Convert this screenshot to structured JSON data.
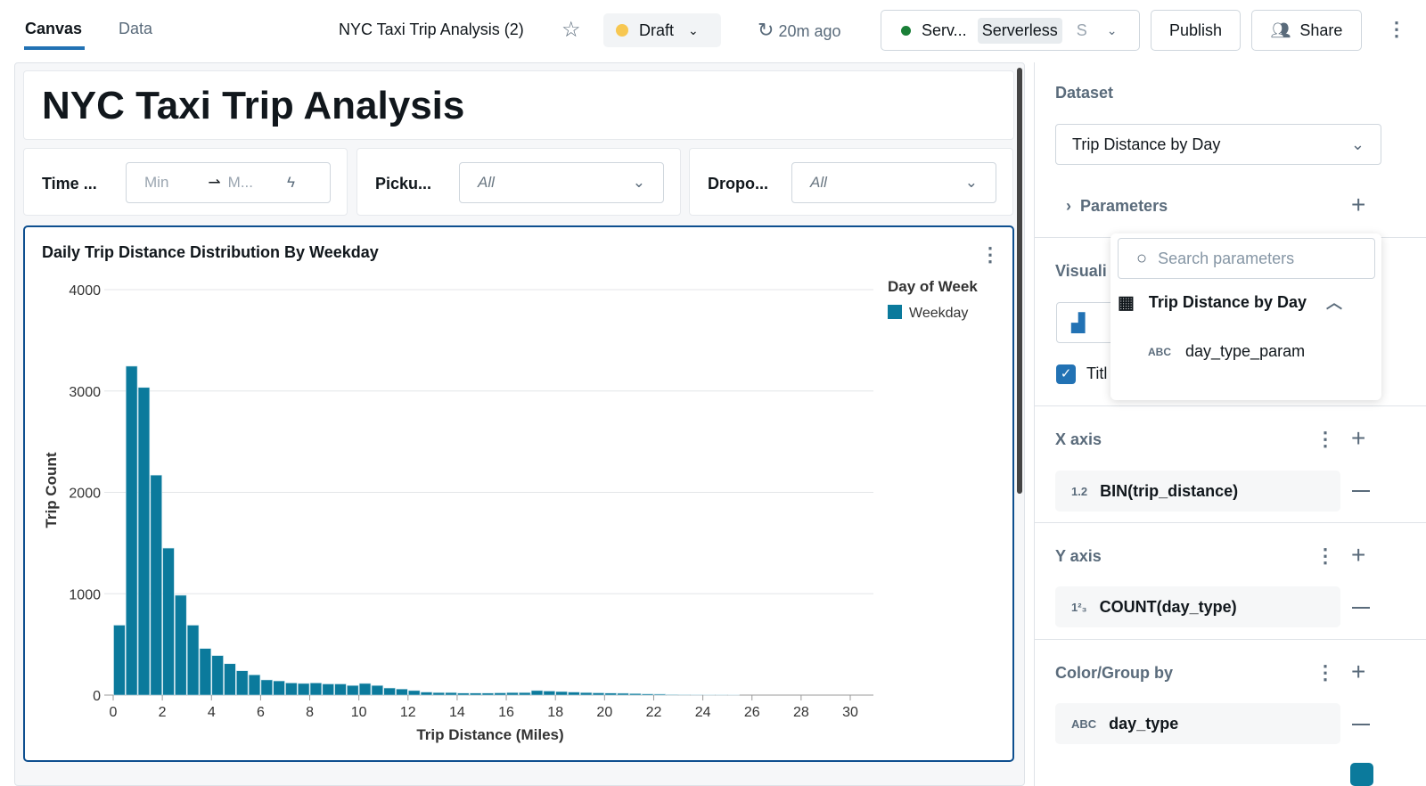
{
  "header": {
    "tabs": [
      {
        "label": "Canvas",
        "active": true
      },
      {
        "label": "Data",
        "active": false
      }
    ],
    "title": "NYC Taxi Trip Analysis (2)",
    "status": "Draft",
    "refresh": "20m ago",
    "compute": {
      "name": "Serv...",
      "badge": "Serverless",
      "size": "S"
    },
    "publish": "Publish",
    "share": "Share"
  },
  "dashboard": {
    "title": "NYC Taxi Trip Analysis",
    "filters": [
      {
        "label": "Time ...",
        "min": "Min",
        "max": "M..."
      },
      {
        "label": "Picku...",
        "value": "All"
      },
      {
        "label": "Dropo...",
        "value": "All"
      }
    ]
  },
  "chart_data": {
    "type": "bar",
    "title": "Daily Trip Distance Distribution By Weekday",
    "xlabel": "Trip Distance (Miles)",
    "ylabel": "Trip Count",
    "xlim": [
      0,
      30
    ],
    "ylim": [
      0,
      4000
    ],
    "xticks": [
      0,
      2,
      4,
      6,
      8,
      10,
      12,
      14,
      16,
      18,
      20,
      22,
      24,
      26,
      28,
      30
    ],
    "yticks": [
      0,
      1000,
      2000,
      3000,
      4000
    ],
    "grid": true,
    "bin_width": 0.5,
    "legend": {
      "title": "Day of Week",
      "position": "top-right"
    },
    "color": "#0b7a9c",
    "series": [
      {
        "name": "Weekday",
        "bin_start": [
          0,
          0.5,
          1,
          1.5,
          2,
          2.5,
          3,
          3.5,
          4,
          4.5,
          5,
          5.5,
          6,
          6.5,
          7,
          7.5,
          8,
          8.5,
          9,
          9.5,
          10,
          10.5,
          11,
          11.5,
          12,
          12.5,
          13,
          13.5,
          14,
          14.5,
          15,
          15.5,
          16,
          16.5,
          17,
          17.5,
          18,
          18.5,
          19,
          19.5,
          20,
          20.5,
          21,
          21.5,
          22,
          22.5,
          23,
          23.5,
          24,
          24.5,
          25
        ],
        "values": [
          690,
          3245,
          3035,
          2170,
          1450,
          985,
          690,
          460,
          390,
          310,
          240,
          200,
          150,
          140,
          120,
          115,
          120,
          110,
          110,
          95,
          115,
          95,
          70,
          60,
          45,
          30,
          25,
          25,
          20,
          20,
          20,
          22,
          25,
          25,
          45,
          40,
          35,
          30,
          25,
          22,
          20,
          18,
          15,
          12,
          10,
          6,
          5,
          4,
          3,
          3,
          2
        ]
      }
    ]
  },
  "panel": {
    "dataset_label": "Dataset",
    "dataset_value": "Trip Distance by Day",
    "parameters_label": "Parameters",
    "visualization_label": "Visuali",
    "title_checkbox": "Titl",
    "x_axis": {
      "label": "X axis",
      "type": "1.2",
      "field": "BIN(trip_distance)"
    },
    "y_axis": {
      "label": "Y axis",
      "type": "1²₃",
      "field": "COUNT(day_type)"
    },
    "color": {
      "label": "Color/Group by",
      "type": "ABC",
      "field": "day_type"
    }
  },
  "popover": {
    "search_placeholder": "Search parameters",
    "dataset": "Trip Distance by Day",
    "items": [
      "day_type_param"
    ]
  }
}
